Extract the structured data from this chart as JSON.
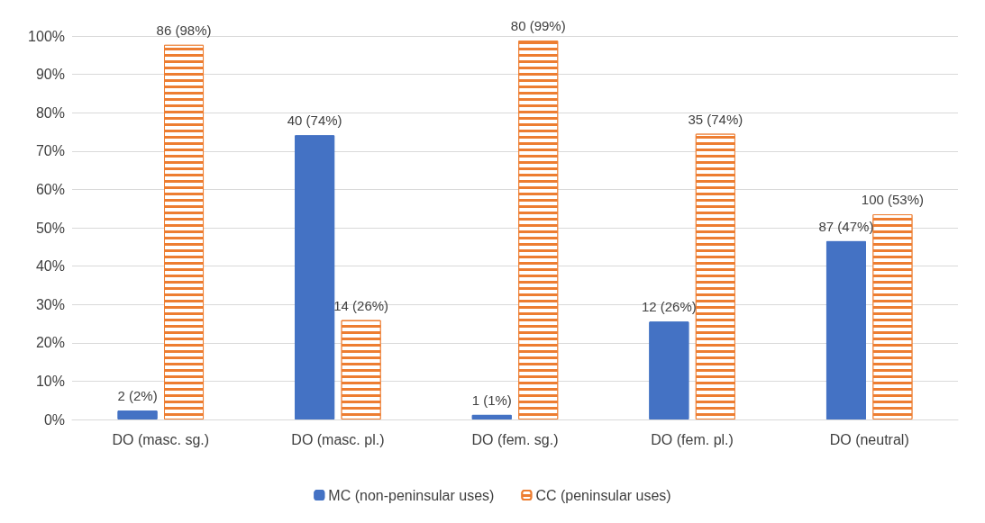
{
  "chart_data": {
    "type": "bar",
    "categories": [
      "DO (masc. sg.)",
      "DO (masc. pl.)",
      "DO (fem. sg.)",
      "DO (fem. pl.)",
      "DO (neutral)"
    ],
    "series": [
      {
        "name": "MC (non-peninsular uses)",
        "color": "#4472c4",
        "values": [
          2.3,
          74.1,
          1.2,
          25.5,
          46.5
        ],
        "value_labels": [
          "2 (2%)",
          "40 (74%)",
          "1 (1%)",
          "12 (26%)",
          "87 (47%)"
        ]
      },
      {
        "name": "CC (peninsular uses)",
        "color": "#ed7d31",
        "values": [
          97.7,
          25.9,
          98.8,
          74.5,
          53.5
        ],
        "value_labels": [
          "86 (98%)",
          "14 (26%)",
          "80 (99%)",
          "35 (74%)",
          "100 (53%)"
        ]
      }
    ],
    "ylim": [
      0,
      100
    ],
    "yticks": [
      {
        "value": 0,
        "label": "0%"
      },
      {
        "value": 10,
        "label": "10%"
      },
      {
        "value": 20,
        "label": "20%"
      },
      {
        "value": 30,
        "label": "30%"
      },
      {
        "value": 40,
        "label": "40%"
      },
      {
        "value": 50,
        "label": "50%"
      },
      {
        "value": 60,
        "label": "60%"
      },
      {
        "value": 70,
        "label": "70%"
      },
      {
        "value": 80,
        "label": "80%"
      },
      {
        "value": 90,
        "label": "90%"
      },
      {
        "value": 100,
        "label": "100%"
      }
    ],
    "grid": "y",
    "legend": "bottom"
  }
}
